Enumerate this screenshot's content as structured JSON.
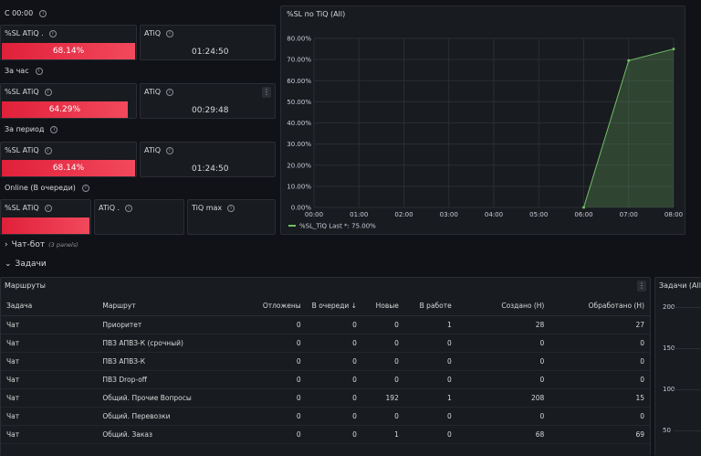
{
  "sections": {
    "s1": "С 00:00",
    "s2": "За час",
    "s3": "За период",
    "s4": "Online (В очереди)"
  },
  "stats": {
    "row1": {
      "sl_title": "%SL ATiQ .",
      "sl_value": "68.14%",
      "sl_pct": 68.14,
      "atiq_title": "ATiQ",
      "atiq_value": "01:24:50"
    },
    "row2": {
      "sl_title": "%SL ATiQ",
      "sl_value": "64.29%",
      "sl_pct": 64.29,
      "atiq_title": "ATiQ",
      "atiq_value": "00:29:48"
    },
    "row3": {
      "sl_title": "%SL ATiQ",
      "sl_value": "68.14%",
      "sl_pct": 68.14,
      "atiq_title": "ATiQ",
      "atiq_value": "01:24:50"
    },
    "row4": {
      "sl_title": "%SL ATiQ",
      "atiq_title": "ATiQ .",
      "tiq_title": "TiQ max"
    }
  },
  "chart_data": {
    "type": "area",
    "title": "%SL по TiQ (All)",
    "x": [
      "00:00",
      "01:00",
      "02:00",
      "03:00",
      "04:00",
      "05:00",
      "06:00",
      "07:00",
      "08:00"
    ],
    "series": [
      {
        "name": "%SL_TiQ",
        "values": [
          null,
          null,
          null,
          null,
          null,
          null,
          0,
          69.5,
          75
        ],
        "color": "#73bf69"
      }
    ],
    "ylim": [
      0,
      80
    ],
    "yticks": [
      "0.00%",
      "10.00%",
      "20.00%",
      "30.00%",
      "40.00%",
      "50.00%",
      "60.00%",
      "70.00%",
      "80.00%"
    ],
    "legend": "%SL_TiQ  Last *: 75.00%"
  },
  "chatbot": {
    "label": "Чат-бот",
    "count": "(3 panels)"
  },
  "tasks": {
    "label": "Задачи"
  },
  "routes": {
    "title": "Маршруты",
    "columns": [
      "Задача",
      "Маршрут",
      "Отложены",
      "В очереди ↓",
      "Новые",
      "В работе",
      "Создано (Н)",
      "Обработано (Н)"
    ],
    "rows": [
      [
        "Чат",
        "Приоритет",
        "0",
        "0",
        "0",
        "1",
        "28",
        "27"
      ],
      [
        "Чат",
        "ПВЗ АПВЗ-К (срочный)",
        "0",
        "0",
        "0",
        "0",
        "0",
        "0"
      ],
      [
        "Чат",
        "ПВЗ АПВЗ-К",
        "0",
        "0",
        "0",
        "0",
        "0",
        "0"
      ],
      [
        "Чат",
        "ПВЗ Drop-off",
        "0",
        "0",
        "0",
        "0",
        "0",
        "0"
      ],
      [
        "Чат",
        "Общий. Прочие Вопросы",
        "0",
        "0",
        "192",
        "1",
        "208",
        "15"
      ],
      [
        "Чат",
        "Общий. Перевозки",
        "0",
        "0",
        "0",
        "0",
        "0",
        "0"
      ],
      [
        "Чат",
        "Общий. Заказ",
        "0",
        "0",
        "1",
        "0",
        "68",
        "69"
      ]
    ]
  },
  "tasks_all": {
    "title": "Задачи (All)",
    "yticks": [
      "200",
      "150",
      "100",
      "50"
    ]
  }
}
